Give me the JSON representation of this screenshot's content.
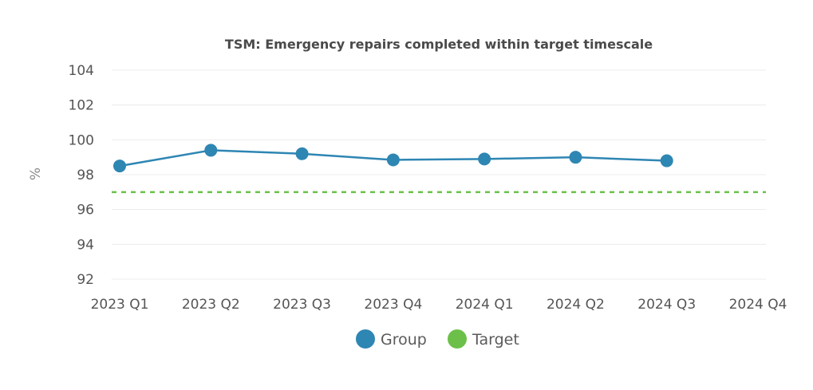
{
  "chart_data": {
    "type": "line",
    "title": "TSM: Emergency repairs completed within target timescale",
    "ylabel": "%",
    "xlabel": "",
    "categories": [
      "2023 Q1",
      "2023 Q2",
      "2023 Q3",
      "2023 Q4",
      "2024 Q1",
      "2024 Q2",
      "2024 Q3",
      "2024 Q4"
    ],
    "ylim": [
      92,
      104
    ],
    "yticks": [
      92,
      94,
      96,
      98,
      100,
      102,
      104
    ],
    "grid": true,
    "legend_position": "bottom-center",
    "series": [
      {
        "name": "Group",
        "color": "#2e86b3",
        "style": "solid-with-markers",
        "values": [
          98.5,
          99.4,
          99.2,
          98.85,
          98.9,
          99.0,
          98.8,
          null
        ]
      },
      {
        "name": "Target",
        "color": "#6cc04a",
        "style": "dashed",
        "values": [
          97,
          97,
          97,
          97,
          97,
          97,
          97,
          97
        ]
      }
    ]
  }
}
